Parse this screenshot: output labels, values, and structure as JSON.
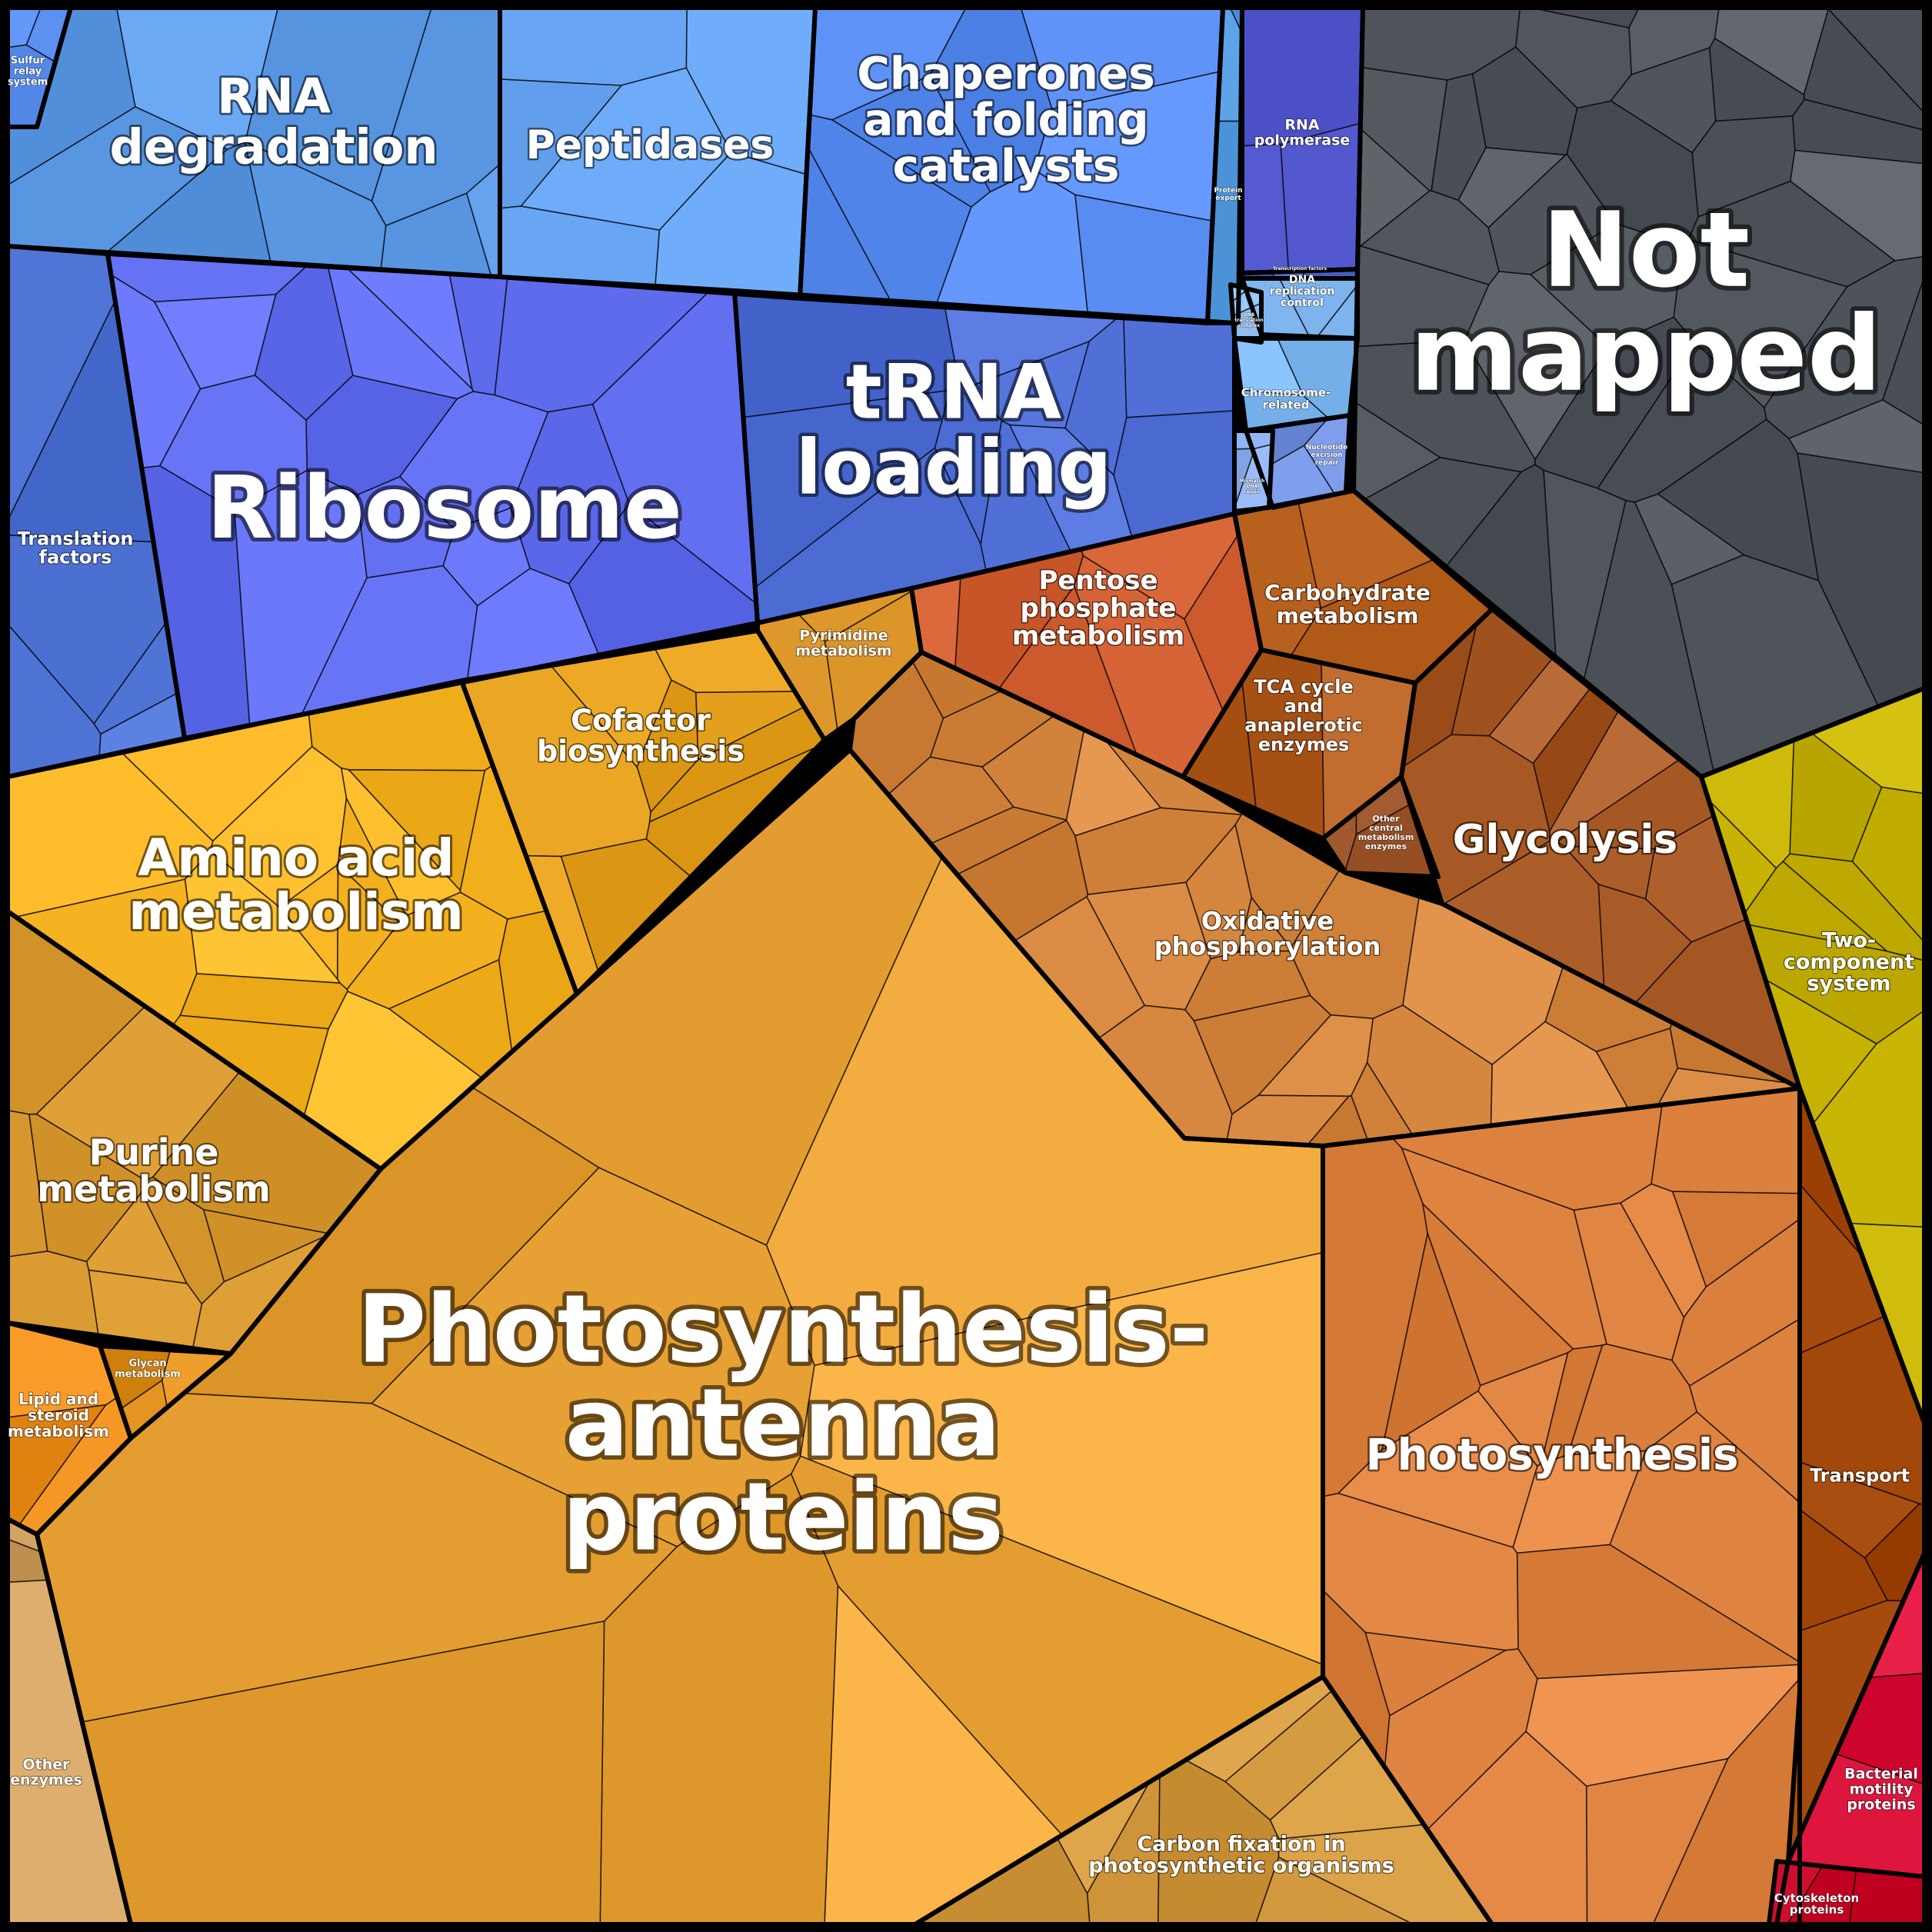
{
  "title": "",
  "categories": [
    {
      "id": "sulfur",
      "label": [
        "Sulfur",
        "relay",
        "system"
      ],
      "color": "#5b8ff0"
    },
    {
      "id": "rna-degradation",
      "label": [
        "RNA",
        "degradation"
      ],
      "color": "#5d9ae6"
    },
    {
      "id": "peptidases",
      "label": [
        "Peptidases"
      ],
      "color": "#6aa8f5"
    },
    {
      "id": "chaperones",
      "label": [
        "Chaperones",
        "and folding",
        "catalysts"
      ],
      "color": "#5b8ef2"
    },
    {
      "id": "protein-export",
      "label": [
        "Protein",
        "export"
      ],
      "color": "#5aa0e4"
    },
    {
      "id": "rna-polymerase",
      "label": [
        "RNA",
        "polymerase"
      ],
      "color": "#4a4fc6"
    },
    {
      "id": "transcription-factors",
      "label": [
        "Transcription factors"
      ],
      "color": "#4a62c8"
    },
    {
      "id": "dna-replication",
      "label": [
        "DNA",
        "replication",
        "control"
      ],
      "color": "#7ab0ea"
    },
    {
      "id": "dna-translation",
      "label": [
        "DNA",
        "translation",
        "complex"
      ],
      "color": "#8ec0f2"
    },
    {
      "id": "chromosome",
      "label": [
        "Chromosome-",
        "related"
      ],
      "color": "#7fbaf4"
    },
    {
      "id": "nucleotide-excision",
      "label": [
        "Nucleotide",
        "excision",
        "repair"
      ],
      "color": "#6f8edc"
    },
    {
      "id": "mismatch",
      "label": [
        "Mismatch",
        "DNA",
        "repair"
      ],
      "color": "#8fb0ee"
    },
    {
      "id": "translation-factors",
      "label": [
        "Translation",
        "factors"
      ],
      "color": "#5276d8"
    },
    {
      "id": "ribosome",
      "label": [
        "Ribosome"
      ],
      "color": "#626ef0"
    },
    {
      "id": "trna-loading",
      "label": [
        "tRNA",
        "loading"
      ],
      "color": "#5070d8"
    },
    {
      "id": "not-mapped",
      "label": [
        "Not",
        "mapped"
      ],
      "color": "#545a60"
    },
    {
      "id": "pyrimidine",
      "label": [
        "Pyrimidine",
        "metabolism"
      ],
      "color": "#d58f22"
    },
    {
      "id": "pentose-phosphate",
      "label": [
        "Pentose",
        "phosphate",
        "metabolism"
      ],
      "color": "#cc5a2c"
    },
    {
      "id": "carbohydrate",
      "label": [
        "Carbohydrate",
        "metabolism"
      ],
      "color": "#be6624"
    },
    {
      "id": "cofactor",
      "label": [
        "Cofactor",
        "biosynthesis"
      ],
      "color": "#e4a01c"
    },
    {
      "id": "amino-acid",
      "label": [
        "Amino acid",
        "metabolism"
      ],
      "color": "#f8b524"
    },
    {
      "id": "tca",
      "label": [
        "TCA cycle",
        "and",
        "anaplerotic",
        "enzymes"
      ],
      "color": "#b45e22"
    },
    {
      "id": "other-central",
      "label": [
        "Other",
        "central",
        "metabolism",
        "enzymes"
      ],
      "color": "#9a5228"
    },
    {
      "id": "glycolysis",
      "label": [
        "Glycolysis"
      ],
      "color": "#a85a26"
    },
    {
      "id": "two-component",
      "label": [
        "Two-",
        "component",
        "system"
      ],
      "color": "#c4b000"
    },
    {
      "id": "oxidative",
      "label": [
        "Oxidative",
        "phosphorylation"
      ],
      "color": "#d68840"
    },
    {
      "id": "purine",
      "label": [
        "Purine",
        "metabolism"
      ],
      "color": "#d2922a"
    },
    {
      "id": "glycan",
      "label": [
        "Glycan",
        "metabolism"
      ],
      "color": "#e0901c"
    },
    {
      "id": "lipid",
      "label": [
        "Lipid and",
        "steroid",
        "metabolism"
      ],
      "color": "#f09220"
    },
    {
      "id": "photosynthesis-antenna",
      "label": [
        "Photosynthesis-",
        "antenna",
        "proteins"
      ],
      "color": "#eca538"
    },
    {
      "id": "photosynthesis",
      "label": [
        "Photosynthesis"
      ],
      "color": "#e08442"
    },
    {
      "id": "transport",
      "label": [
        "Transport"
      ],
      "color": "#983e00"
    },
    {
      "id": "carbon-fixation",
      "label": [
        "Carbon fixation in",
        "photosynthetic organisms"
      ],
      "color": "#d49a40"
    },
    {
      "id": "other-enzymes",
      "label": [
        "Other",
        "enzymes"
      ],
      "color": "#cfa060"
    },
    {
      "id": "bacterial-motility",
      "label": [
        "Bacterial",
        "motility",
        "proteins"
      ],
      "color": "#dc143c"
    },
    {
      "id": "cytoskeleton",
      "label": [
        "Cytoskeleton",
        "proteins"
      ],
      "color": "#d01030"
    }
  ]
}
